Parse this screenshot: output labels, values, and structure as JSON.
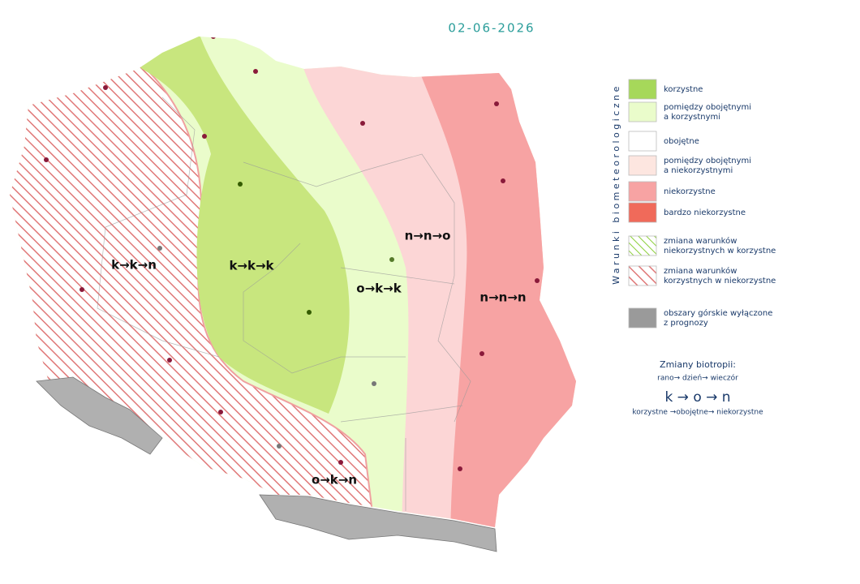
{
  "header": {
    "date": "02-06-2026"
  },
  "zones": [
    {
      "label": "k→k→n"
    },
    {
      "label": "k→k→k"
    },
    {
      "label": "o→k→k"
    },
    {
      "label": "n→n→o"
    },
    {
      "label": "n→n→n"
    },
    {
      "label": "o→k→n"
    }
  ],
  "legend": {
    "title": "Warunki biometeorologiczne",
    "items": [
      {
        "lines": [
          "korzystne"
        ]
      },
      {
        "lines": [
          "pomiędzy obojętnymi",
          "a korzystnymi"
        ]
      },
      {
        "lines": [
          "obojętne"
        ]
      },
      {
        "lines": [
          "pomiędzy obojętnymi",
          "a niekorzystnymi"
        ]
      },
      {
        "lines": [
          "niekorzystne"
        ]
      },
      {
        "lines": [
          "bardzo niekorzystne"
        ]
      },
      {
        "lines": [
          "zmiana warunków",
          "niekorzystnych w korzystne"
        ]
      },
      {
        "lines": [
          "zmiana warunków",
          "korzystnych w niekorzystne"
        ]
      },
      {
        "lines": [
          "obszary górskie wyłączone",
          "z prognozy"
        ]
      }
    ]
  },
  "note": {
    "title": "Zmiany biotropii:",
    "sequence": "rano→ dzień→ wieczór",
    "codes": "k → o → n",
    "meaning": "korzystne →obojętne→ niekorzystne"
  }
}
